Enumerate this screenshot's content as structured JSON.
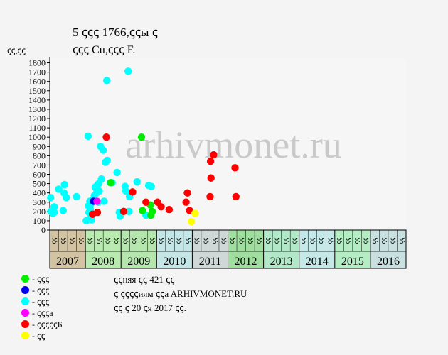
{
  "header": {
    "title_line1": "5 ꞔꞔꞔ 1766,ꞔꞔы ꞔ",
    "title_line2": "ꞔꞔꞔ Cu,ꞔꞔꞔ F.",
    "y_unit": "ꞔꞔ,ꞔꞔ"
  },
  "watermark": "arhivmonet.ru",
  "legend": [
    {
      "label": "- ꞔꞔꞔ",
      "color": "#00ee00"
    },
    {
      "label": "- ꞔꞔꞔ",
      "color": "#0000ee"
    },
    {
      "label": "- ꞔꞔꞔ",
      "color": "#00ffff"
    },
    {
      "label": "- ꞔꞔꞔa",
      "color": "#ff00ff"
    },
    {
      "label": "- ꞔꞔꞔꞔꞔБ",
      "color": "#ff0000"
    },
    {
      "label": "- ꞔꞔ",
      "color": "#ffff00"
    }
  ],
  "info": {
    "line1": "ꞔꞔняя ꞔꞔ 421 ꞔꞔ",
    "line2": "ꞔ ꞔꞔꞔꞔиям ꞔꞔa ARHIVMONET.RU",
    "line3": "ꞔꞔ ꞔ 20 ꞔя 2017 ꞔꞔ."
  },
  "chart_data": {
    "type": "scatter",
    "ylim": [
      0,
      1850
    ],
    "yticks": [
      0,
      100,
      200,
      300,
      400,
      500,
      600,
      700,
      800,
      900,
      1000,
      1100,
      1200,
      1300,
      1400,
      1500,
      1600,
      1700,
      1800
    ],
    "quarter_labels": [
      "ꞔꞔ",
      "ꞔꞔ",
      "ꞔꞔ",
      "ꞔꞔ"
    ],
    "years": [
      {
        "label": "2007",
        "color": "#d2c3a3"
      },
      {
        "label": "2008",
        "color": "#b9ebb0"
      },
      {
        "label": "2009",
        "color": "#b4e6ad"
      },
      {
        "label": "2010",
        "color": "#c5e6e6"
      },
      {
        "label": "2011",
        "color": "#cfd7d7"
      },
      {
        "label": "2012",
        "color": "#9fde9f"
      },
      {
        "label": "2013",
        "color": "#b0e8c8"
      },
      {
        "label": "2014",
        "color": "#c5e8e8"
      },
      {
        "label": "2015",
        "color": "#b4ecc4"
      },
      {
        "label": "2016",
        "color": "#c8e0e0"
      }
    ],
    "series": [
      {
        "color": "#00ffff",
        "points": [
          [
            0.1,
            350
          ],
          [
            0.12,
            200
          ],
          [
            0.5,
            250
          ],
          [
            0.5,
            190
          ],
          [
            0.35,
            180
          ],
          [
            1.0,
            440
          ],
          [
            1.5,
            210
          ],
          [
            1.6,
            400
          ],
          [
            1.65,
            490
          ],
          [
            1.85,
            350
          ],
          [
            3.0,
            360
          ],
          [
            4.1,
            100
          ],
          [
            4.3,
            1010
          ],
          [
            4.35,
            260
          ],
          [
            4.4,
            190
          ],
          [
            4.5,
            310
          ],
          [
            4.55,
            220
          ],
          [
            4.6,
            280
          ],
          [
            4.65,
            150
          ],
          [
            4.7,
            110
          ],
          [
            4.75,
            320
          ],
          [
            5.0,
            370
          ],
          [
            5.1,
            460
          ],
          [
            5.2,
            470
          ],
          [
            5.25,
            400
          ],
          [
            5.35,
            430
          ],
          [
            5.45,
            300
          ],
          [
            5.5,
            500
          ],
          [
            5.55,
            420
          ],
          [
            5.8,
            550
          ],
          [
            5.7,
            900
          ],
          [
            6.0,
            860
          ],
          [
            6.1,
            310
          ],
          [
            6.25,
            730
          ],
          [
            6.4,
            1610
          ],
          [
            6.45,
            750
          ],
          [
            6.8,
            510
          ],
          [
            7.0,
            510
          ],
          [
            7.55,
            620
          ],
          [
            7.8,
            190
          ],
          [
            7.9,
            150
          ],
          [
            8.45,
            470
          ],
          [
            8.55,
            420
          ],
          [
            8.8,
            1710
          ],
          [
            8.9,
            200
          ],
          [
            8.95,
            360
          ],
          [
            9.8,
            520
          ],
          [
            10.8,
            160
          ],
          [
            11.1,
            480
          ],
          [
            11.4,
            470
          ]
        ]
      },
      {
        "color": "#0000ee",
        "points": [
          [
            4.9,
            310
          ]
        ]
      },
      {
        "color": "#ff00ff",
        "points": [
          [
            5.3,
            310
          ]
        ]
      },
      {
        "color": "#00ee00",
        "points": [
          [
            6.85,
            510
          ],
          [
            10.3,
            1000
          ],
          [
            10.4,
            210
          ],
          [
            11.3,
            270
          ],
          [
            11.5,
            200
          ],
          [
            11.35,
            160
          ]
        ]
      },
      {
        "color": "#ff0000",
        "points": [
          [
            4.8,
            170
          ],
          [
            5.35,
            190
          ],
          [
            6.35,
            1000
          ],
          [
            8.3,
            200
          ],
          [
            9.3,
            410
          ],
          [
            10.8,
            300
          ],
          [
            12.1,
            300
          ],
          [
            12.5,
            250
          ],
          [
            13.4,
            220
          ],
          [
            15.3,
            300
          ],
          [
            15.45,
            400
          ],
          [
            15.7,
            210
          ],
          [
            18.0,
            360
          ],
          [
            18.05,
            740
          ],
          [
            18.1,
            560
          ],
          [
            18.4,
            810
          ],
          [
            20.8,
            670
          ],
          [
            20.9,
            360
          ]
        ]
      },
      {
        "color": "#ffff00",
        "points": [
          [
            15.9,
            90
          ],
          [
            16.3,
            180
          ]
        ]
      }
    ]
  }
}
